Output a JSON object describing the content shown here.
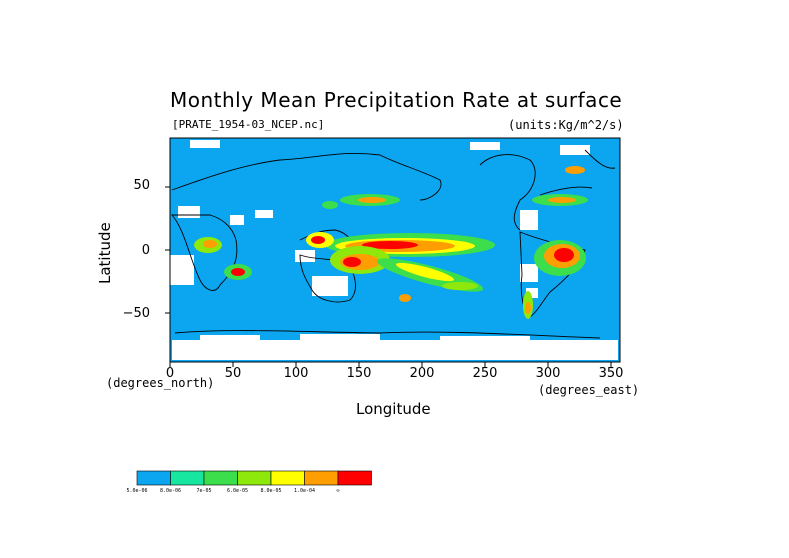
{
  "chart_data": {
    "type": "heatmap",
    "title": "Monthly Mean Precipitation Rate at surface",
    "subtitle": "[PRATE_1954-03_NCEP.nc]",
    "units": "(units:Kg/m^2/s)",
    "xlabel": "Longitude",
    "ylabel": "Latitude",
    "x_unit_note": "(degrees_east)",
    "y_unit_note": "(degrees_north)",
    "xlim": [
      0,
      360
    ],
    "ylim": [
      -90,
      90
    ],
    "x_ticks": [
      "0",
      "50",
      "100",
      "150",
      "200",
      "250",
      "300",
      "350"
    ],
    "y_ticks": [
      "50",
      "0",
      "−50"
    ],
    "colorbar": {
      "colors": [
        "#0ba5f0",
        "#17e6a0",
        "#3cde4c",
        "#8ee80c",
        "#ffff00",
        "#ff9e00",
        "#ff0000"
      ],
      "labels": [
        "5.0e-06",
        "8.0e-06",
        "7e-05",
        "6.0e-05",
        "8.0e-05",
        "1.0e-04",
        "∞"
      ]
    },
    "background_color": "#0ba5f0"
  }
}
